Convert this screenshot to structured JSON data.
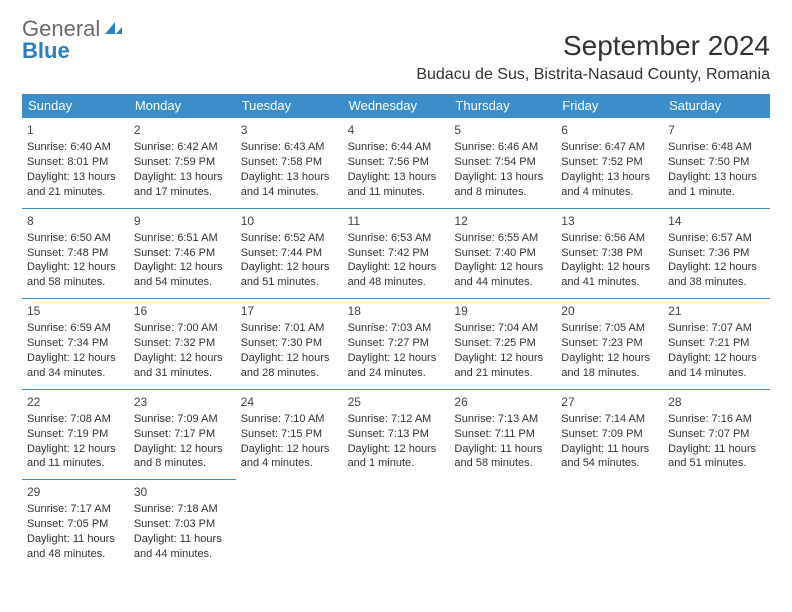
{
  "logo": {
    "text1": "General",
    "text2": "Blue"
  },
  "title": "September 2024",
  "subtitle": "Budacu de Sus, Bistrita-Nasaud County, Romania",
  "colors": {
    "header_bg": "#3b8ec9",
    "header_text": "#ffffff",
    "cell_border": "#3b8ec9",
    "body_text": "#333333",
    "logo_gray": "#6b6b6b",
    "logo_blue": "#2b7fbf",
    "page_bg": "#ffffff"
  },
  "fontsizes": {
    "title": 28,
    "subtitle": 16,
    "daylabel": 13,
    "daynum": 12,
    "cell": 11
  },
  "day_labels": [
    "Sunday",
    "Monday",
    "Tuesday",
    "Wednesday",
    "Thursday",
    "Friday",
    "Saturday"
  ],
  "leading_blanks": 0,
  "days": [
    {
      "n": "1",
      "sunrise": "Sunrise: 6:40 AM",
      "sunset": "Sunset: 8:01 PM",
      "daylight": "Daylight: 13 hours and 21 minutes."
    },
    {
      "n": "2",
      "sunrise": "Sunrise: 6:42 AM",
      "sunset": "Sunset: 7:59 PM",
      "daylight": "Daylight: 13 hours and 17 minutes."
    },
    {
      "n": "3",
      "sunrise": "Sunrise: 6:43 AM",
      "sunset": "Sunset: 7:58 PM",
      "daylight": "Daylight: 13 hours and 14 minutes."
    },
    {
      "n": "4",
      "sunrise": "Sunrise: 6:44 AM",
      "sunset": "Sunset: 7:56 PM",
      "daylight": "Daylight: 13 hours and 11 minutes."
    },
    {
      "n": "5",
      "sunrise": "Sunrise: 6:46 AM",
      "sunset": "Sunset: 7:54 PM",
      "daylight": "Daylight: 13 hours and 8 minutes."
    },
    {
      "n": "6",
      "sunrise": "Sunrise: 6:47 AM",
      "sunset": "Sunset: 7:52 PM",
      "daylight": "Daylight: 13 hours and 4 minutes."
    },
    {
      "n": "7",
      "sunrise": "Sunrise: 6:48 AM",
      "sunset": "Sunset: 7:50 PM",
      "daylight": "Daylight: 13 hours and 1 minute."
    },
    {
      "n": "8",
      "sunrise": "Sunrise: 6:50 AM",
      "sunset": "Sunset: 7:48 PM",
      "daylight": "Daylight: 12 hours and 58 minutes."
    },
    {
      "n": "9",
      "sunrise": "Sunrise: 6:51 AM",
      "sunset": "Sunset: 7:46 PM",
      "daylight": "Daylight: 12 hours and 54 minutes."
    },
    {
      "n": "10",
      "sunrise": "Sunrise: 6:52 AM",
      "sunset": "Sunset: 7:44 PM",
      "daylight": "Daylight: 12 hours and 51 minutes."
    },
    {
      "n": "11",
      "sunrise": "Sunrise: 6:53 AM",
      "sunset": "Sunset: 7:42 PM",
      "daylight": "Daylight: 12 hours and 48 minutes."
    },
    {
      "n": "12",
      "sunrise": "Sunrise: 6:55 AM",
      "sunset": "Sunset: 7:40 PM",
      "daylight": "Daylight: 12 hours and 44 minutes."
    },
    {
      "n": "13",
      "sunrise": "Sunrise: 6:56 AM",
      "sunset": "Sunset: 7:38 PM",
      "daylight": "Daylight: 12 hours and 41 minutes."
    },
    {
      "n": "14",
      "sunrise": "Sunrise: 6:57 AM",
      "sunset": "Sunset: 7:36 PM",
      "daylight": "Daylight: 12 hours and 38 minutes."
    },
    {
      "n": "15",
      "sunrise": "Sunrise: 6:59 AM",
      "sunset": "Sunset: 7:34 PM",
      "daylight": "Daylight: 12 hours and 34 minutes."
    },
    {
      "n": "16",
      "sunrise": "Sunrise: 7:00 AM",
      "sunset": "Sunset: 7:32 PM",
      "daylight": "Daylight: 12 hours and 31 minutes."
    },
    {
      "n": "17",
      "sunrise": "Sunrise: 7:01 AM",
      "sunset": "Sunset: 7:30 PM",
      "daylight": "Daylight: 12 hours and 28 minutes."
    },
    {
      "n": "18",
      "sunrise": "Sunrise: 7:03 AM",
      "sunset": "Sunset: 7:27 PM",
      "daylight": "Daylight: 12 hours and 24 minutes."
    },
    {
      "n": "19",
      "sunrise": "Sunrise: 7:04 AM",
      "sunset": "Sunset: 7:25 PM",
      "daylight": "Daylight: 12 hours and 21 minutes."
    },
    {
      "n": "20",
      "sunrise": "Sunrise: 7:05 AM",
      "sunset": "Sunset: 7:23 PM",
      "daylight": "Daylight: 12 hours and 18 minutes."
    },
    {
      "n": "21",
      "sunrise": "Sunrise: 7:07 AM",
      "sunset": "Sunset: 7:21 PM",
      "daylight": "Daylight: 12 hours and 14 minutes."
    },
    {
      "n": "22",
      "sunrise": "Sunrise: 7:08 AM",
      "sunset": "Sunset: 7:19 PM",
      "daylight": "Daylight: 12 hours and 11 minutes."
    },
    {
      "n": "23",
      "sunrise": "Sunrise: 7:09 AM",
      "sunset": "Sunset: 7:17 PM",
      "daylight": "Daylight: 12 hours and 8 minutes."
    },
    {
      "n": "24",
      "sunrise": "Sunrise: 7:10 AM",
      "sunset": "Sunset: 7:15 PM",
      "daylight": "Daylight: 12 hours and 4 minutes."
    },
    {
      "n": "25",
      "sunrise": "Sunrise: 7:12 AM",
      "sunset": "Sunset: 7:13 PM",
      "daylight": "Daylight: 12 hours and 1 minute."
    },
    {
      "n": "26",
      "sunrise": "Sunrise: 7:13 AM",
      "sunset": "Sunset: 7:11 PM",
      "daylight": "Daylight: 11 hours and 58 minutes."
    },
    {
      "n": "27",
      "sunrise": "Sunrise: 7:14 AM",
      "sunset": "Sunset: 7:09 PM",
      "daylight": "Daylight: 11 hours and 54 minutes."
    },
    {
      "n": "28",
      "sunrise": "Sunrise: 7:16 AM",
      "sunset": "Sunset: 7:07 PM",
      "daylight": "Daylight: 11 hours and 51 minutes."
    },
    {
      "n": "29",
      "sunrise": "Sunrise: 7:17 AM",
      "sunset": "Sunset: 7:05 PM",
      "daylight": "Daylight: 11 hours and 48 minutes."
    },
    {
      "n": "30",
      "sunrise": "Sunrise: 7:18 AM",
      "sunset": "Sunset: 7:03 PM",
      "daylight": "Daylight: 11 hours and 44 minutes."
    }
  ]
}
